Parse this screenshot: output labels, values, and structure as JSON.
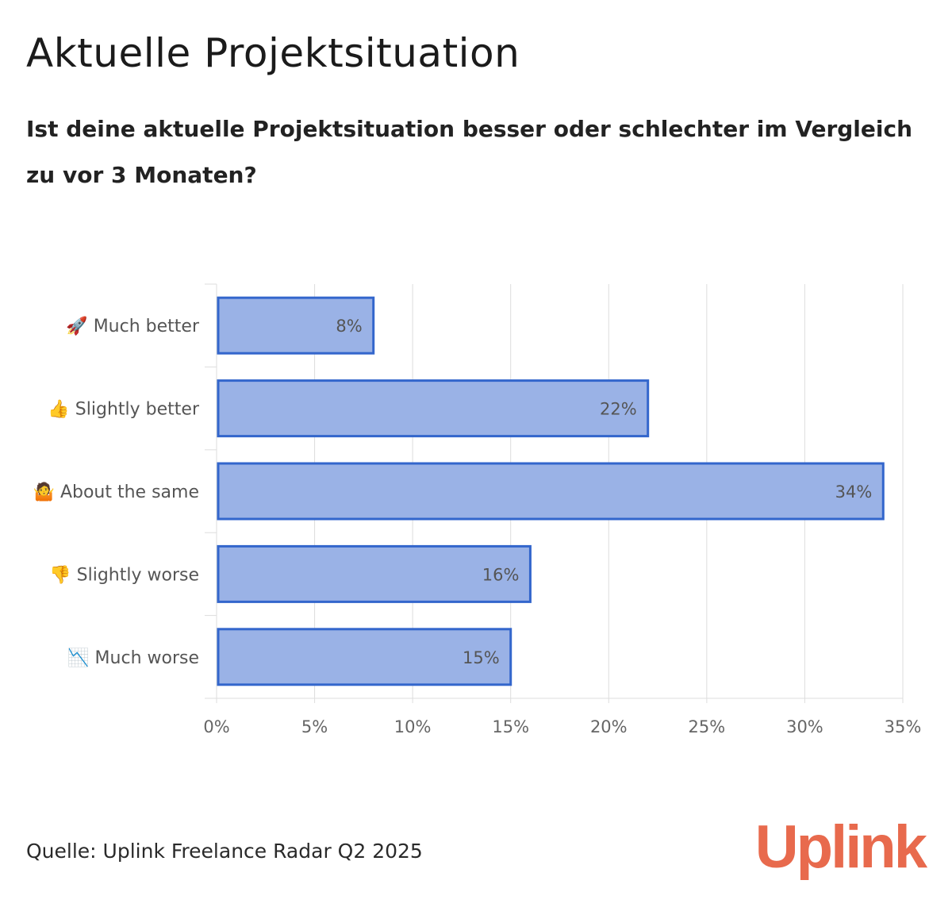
{
  "title": "Aktuelle Projektsituation",
  "subtitle": "Ist deine aktuelle Projektsituation besser oder schlechter im Vergleich zu vor 3 Monaten?",
  "source": "Quelle: Uplink Freelance Radar Q2 2025",
  "logo": "Uplink",
  "colors": {
    "bar_fill": "#9ab2e6",
    "bar_stroke": "#3366cc",
    "grid": "#dddddd",
    "axis_text": "#666666",
    "logo": "#e86a4d"
  },
  "chart_data": {
    "type": "bar",
    "orientation": "horizontal",
    "categories": [
      "🚀 Much better",
      "👍 Slightly better",
      "🤷 About the same",
      "👎 Slightly worse",
      "📉 Much worse"
    ],
    "values": [
      8,
      22,
      34,
      16,
      15
    ],
    "value_labels": [
      "8%",
      "22%",
      "34%",
      "16%",
      "15%"
    ],
    "xlim": [
      0,
      35
    ],
    "x_ticks": [
      0,
      5,
      10,
      15,
      20,
      25,
      30,
      35
    ],
    "x_tick_labels": [
      "0%",
      "5%",
      "10%",
      "15%",
      "20%",
      "25%",
      "30%",
      "35%"
    ],
    "grid": true,
    "legend": "none"
  }
}
